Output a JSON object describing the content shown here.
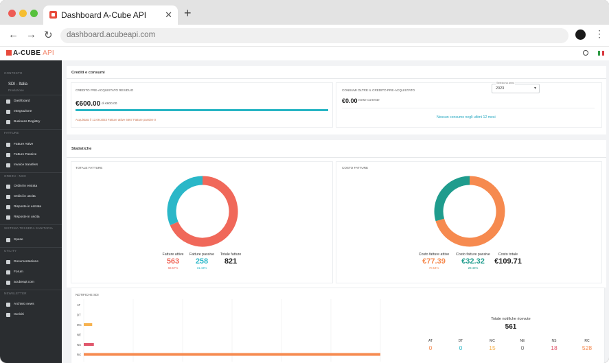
{
  "browser": {
    "tab_title": "Dashboard A-Cube API",
    "tab_close": "✕",
    "new_tab": "+",
    "url": "dashboard.acubeapi.com",
    "back": "←",
    "forward": "→",
    "reload": "↻",
    "menu": "⋮"
  },
  "app": {
    "logo_main": "A-CUBE",
    "logo_api": "API"
  },
  "sidebar": {
    "section_contesto": "CONTESTO",
    "company": "SDI - Italia",
    "company_sub": "Produzione",
    "items_main": [
      {
        "label": "Dashboard"
      },
      {
        "label": "Integrazione"
      },
      {
        "label": "Business Registry"
      }
    ],
    "section_fatture": "FATTURE",
    "items_fatture": [
      {
        "label": "Fatture Attive"
      },
      {
        "label": "Fatture Passive"
      },
      {
        "label": "Invoice transfers"
      }
    ],
    "section_ordini": "ORDINI - NSO",
    "items_ordini": [
      {
        "label": "Ordini in entrata"
      },
      {
        "label": "Ordini in uscita"
      },
      {
        "label": "Risposte in entrata"
      },
      {
        "label": "Risposte in uscita"
      }
    ],
    "section_sts": "SISTEMA TESSERA SANITARIA",
    "items_sts": [
      {
        "label": "Spese"
      }
    ],
    "section_utility": "UTILITY",
    "items_utility": [
      {
        "label": "Documentazione"
      },
      {
        "label": "Forum"
      },
      {
        "label": "acubeapi.com"
      }
    ],
    "section_newsletter": "NEWSLETTER",
    "items_newsletter": [
      {
        "label": "Archivio news"
      },
      {
        "label": "Iscriviti"
      }
    ]
  },
  "credits": {
    "title": "Crediti e consumi",
    "left_label": "CREDITO PRE-ACQUISTATO RESIDUO",
    "left_amount": "€600.00",
    "left_of": "di €600.00",
    "left_progress": 1.0,
    "left_note": "Acquistato il 13.09.2023 Fatture attive 6667 Fatture passive 0",
    "right_label": "CONSUMI OLTRE IL CREDITO PRE-ACQUISTATO",
    "right_amount": "€0.00",
    "right_period": "mese corrente",
    "right_empty": "Nessun consumo negli ultimi 12 mesi"
  },
  "stats": {
    "title": "Statistiche",
    "year_label": "Seleziona anno",
    "year_value": "2023",
    "year_caret": "▾",
    "totale_fatture": {
      "title": "TOTALE FATTURE",
      "attive_label": "Fatture attive",
      "attive_value": "563",
      "attive_pct": "68.57%",
      "attive_count": 563,
      "passive_label": "Fatture passive",
      "passive_value": "258",
      "passive_pct": "31.43%",
      "passive_count": 258,
      "totale_label": "Totale fatture",
      "totale_value": "821"
    },
    "costo_fatture": {
      "title": "COSTO FATTURE",
      "attive_label": "Costo fatture attive",
      "attive_value": "€77.39",
      "attive_pct": "70.54%",
      "attive_amount": 77.39,
      "passive_label": "Costo fatture passive",
      "passive_value": "€32.32",
      "passive_pct": "29.46%",
      "passive_amount": 32.32,
      "totale_label": "Costo totale",
      "totale_value": "€109.71"
    },
    "colors": {
      "attive_red": "#f0685a",
      "passive_cyan": "#2ab7c8",
      "costo_orange": "#f68a4f",
      "costo_teal": "#1f9c8d"
    }
  },
  "notifiche": {
    "title": "NOTIFICHE SDI",
    "totale_label": "Totale notifiche ricevute",
    "totale_value": "561",
    "items": [
      {
        "code": "AT",
        "value": "0",
        "count": 0,
        "color": "#f68a4f"
      },
      {
        "code": "DT",
        "value": "0",
        "count": 0,
        "color": "#2ab7c8"
      },
      {
        "code": "MC",
        "value": "15",
        "count": 15,
        "color": "#f6b24f"
      },
      {
        "code": "NE",
        "value": "0",
        "count": 0,
        "color": "#777777"
      },
      {
        "code": "NS",
        "value": "18",
        "count": 18,
        "color": "#e0566b"
      },
      {
        "code": "RC",
        "value": "528",
        "count": 528,
        "color": "#f68a4f"
      }
    ]
  }
}
